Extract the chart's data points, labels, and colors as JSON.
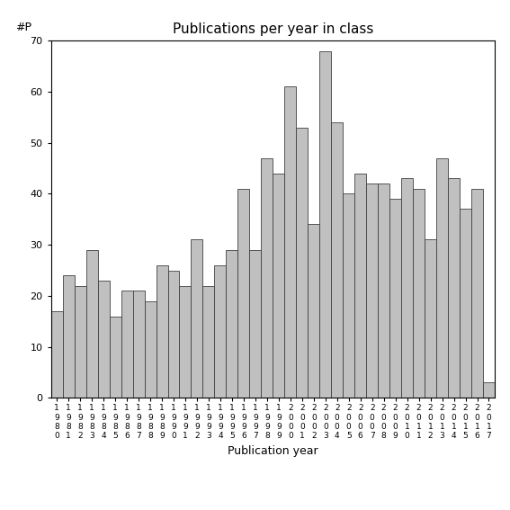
{
  "title": "Publications per year in class",
  "xlabel": "Publication year",
  "ylabel": "#P",
  "bar_color": "#c0c0c0",
  "bar_edge_color": "#404040",
  "background_color": "#ffffff",
  "ylim": [
    0,
    70
  ],
  "yticks": [
    0,
    10,
    20,
    30,
    40,
    50,
    60,
    70
  ],
  "years": [
    1980,
    1981,
    1982,
    1983,
    1984,
    1985,
    1986,
    1987,
    1988,
    1989,
    1990,
    1991,
    1992,
    1993,
    1994,
    1995,
    1996,
    1997,
    1998,
    1999,
    2000,
    2001,
    2002,
    2003,
    2004,
    2005,
    2006,
    2007,
    2008,
    2009,
    2010,
    2011,
    2012,
    2013,
    2014,
    2015,
    2016,
    2017
  ],
  "values": [
    17,
    24,
    22,
    29,
    23,
    16,
    21,
    21,
    19,
    26,
    25,
    22,
    31,
    22,
    26,
    29,
    41,
    29,
    47,
    44,
    61,
    53,
    34,
    68,
    54,
    40,
    44,
    42,
    42,
    39,
    43,
    41,
    31,
    47,
    43,
    37,
    41,
    3
  ],
  "title_fontsize": 11,
  "axis_label_fontsize": 9,
  "tick_fontsize": 8,
  "ylabel_fontsize": 9
}
